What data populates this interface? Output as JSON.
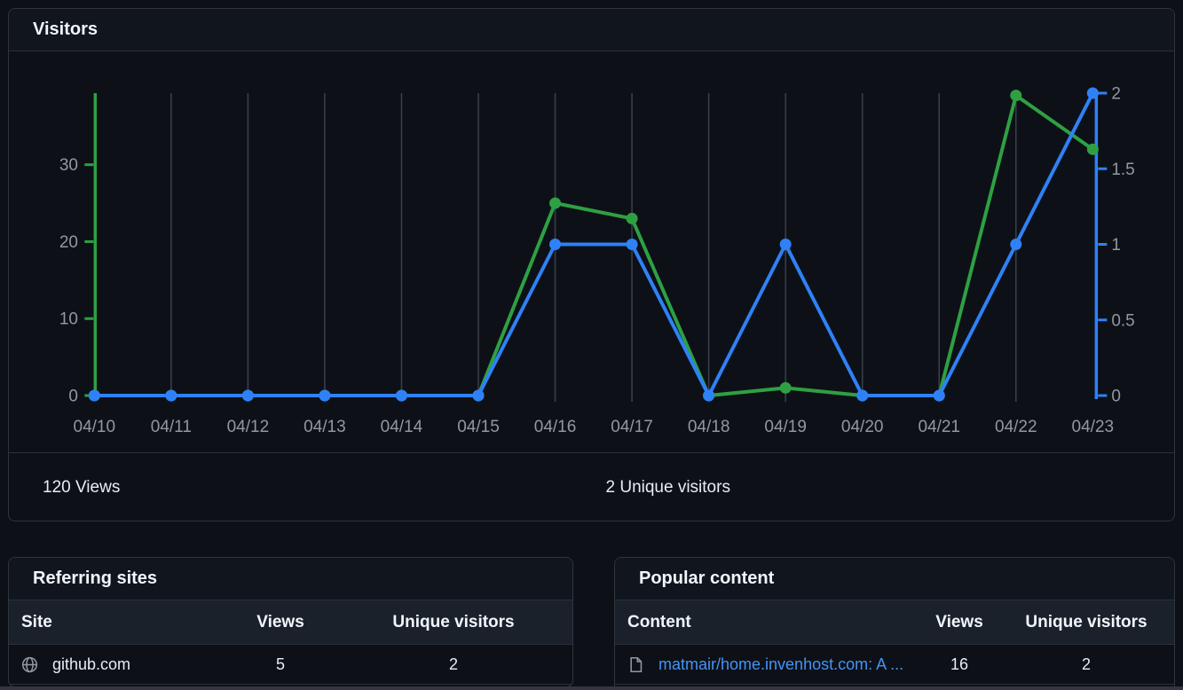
{
  "visitors": {
    "title": "Visitors",
    "views_summary": "120 Views",
    "unique_summary": "2 Unique visitors"
  },
  "chart_data": {
    "type": "line",
    "title": "Visitors",
    "xlabel": "",
    "ylabel": "",
    "categories": [
      "04/10",
      "04/11",
      "04/12",
      "04/13",
      "04/14",
      "04/15",
      "04/16",
      "04/17",
      "04/18",
      "04/19",
      "04/20",
      "04/21",
      "04/22",
      "04/23"
    ],
    "series": [
      {
        "name": "Views",
        "axis": "left",
        "color": "#2ea043",
        "values": [
          0,
          0,
          0,
          0,
          0,
          0,
          25,
          23,
          0,
          1,
          0,
          0,
          39,
          32
        ]
      },
      {
        "name": "Unique visitors",
        "axis": "right",
        "color": "#2f81f7",
        "values": [
          0,
          0,
          0,
          0,
          0,
          0,
          1,
          1,
          0,
          1,
          0,
          0,
          1,
          2
        ]
      }
    ],
    "left_axis": {
      "ticks": [
        0,
        10,
        20,
        30
      ],
      "range": [
        0,
        39.3
      ],
      "color": "#2ea043"
    },
    "right_axis": {
      "ticks": [
        0,
        0.5,
        1,
        1.5,
        2
      ],
      "range": [
        0,
        2
      ],
      "color": "#2f81f7"
    },
    "grid": "vertical",
    "gridline_color": "#3a414b",
    "tick_label_color": "#9198a1",
    "legend": "none"
  },
  "referring_sites": {
    "title": "Referring sites",
    "columns": [
      "Site",
      "Views",
      "Unique visitors"
    ],
    "rows": [
      {
        "icon": "globe-icon",
        "site": "github.com",
        "views": "5",
        "unique_visitors": "2"
      }
    ]
  },
  "popular_content": {
    "title": "Popular content",
    "columns": [
      "Content",
      "Views",
      "Unique visitors"
    ],
    "rows": [
      {
        "icon": "file-icon",
        "content": "matmair/home.invenhost.com: A ...",
        "views": "16",
        "unique_visitors": "2"
      }
    ]
  }
}
